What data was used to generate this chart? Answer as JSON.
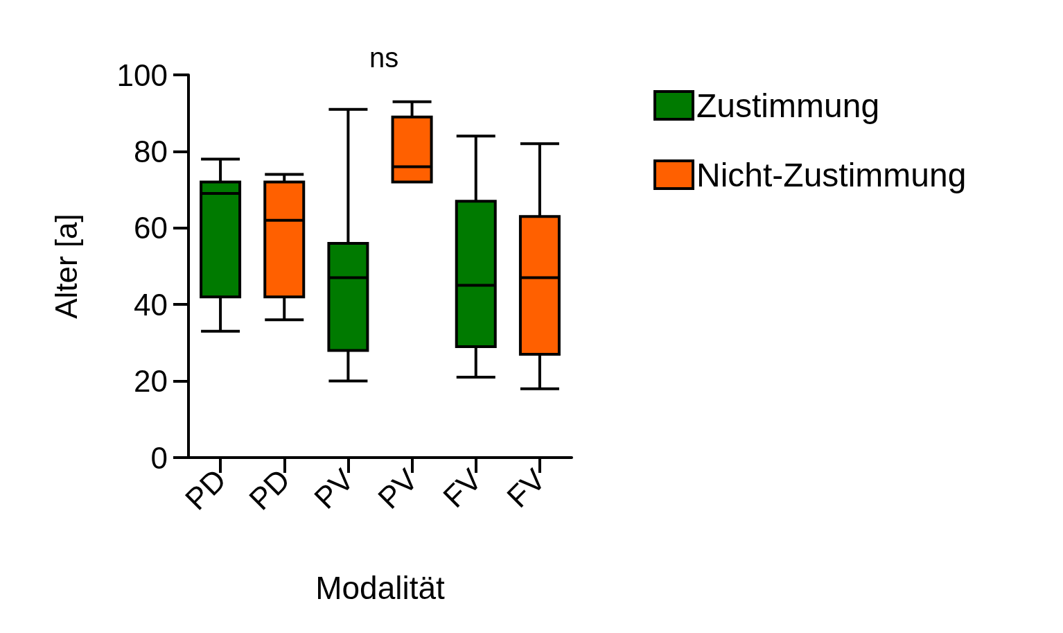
{
  "chart_data": {
    "type": "box",
    "xlabel": "Modalität",
    "ylabel": "Alter [a]",
    "annotations": [
      "ns"
    ],
    "categories": [
      "PD",
      "PD",
      "PV",
      "PV",
      "FV",
      "FV"
    ],
    "ylim": [
      0,
      100
    ],
    "yticks": [
      0,
      20,
      40,
      60,
      80,
      100
    ],
    "grid": false,
    "legend": "top right",
    "series": [
      {
        "name": "Zustimmung",
        "color": "#007a00",
        "boxes": [
          {
            "low": 33,
            "q1": 42,
            "median": 69,
            "q3": 72,
            "high": 78
          },
          null,
          {
            "low": 20,
            "q1": 28,
            "median": 47,
            "q3": 56,
            "high": 91
          },
          null,
          {
            "low": 21,
            "q1": 29,
            "median": 45,
            "q3": 67,
            "high": 84
          },
          null
        ]
      },
      {
        "name": "Nicht-Zustimmung",
        "color": "#ff6000",
        "boxes": [
          null,
          {
            "low": 36,
            "q1": 42,
            "median": 62,
            "q3": 72,
            "high": 74
          },
          null,
          {
            "low": 72,
            "q1": 72,
            "median": 76,
            "q3": 89,
            "high": 93
          },
          null,
          {
            "low": 18,
            "q1": 27,
            "median": 47,
            "q3": 63,
            "high": 82
          }
        ]
      }
    ]
  }
}
